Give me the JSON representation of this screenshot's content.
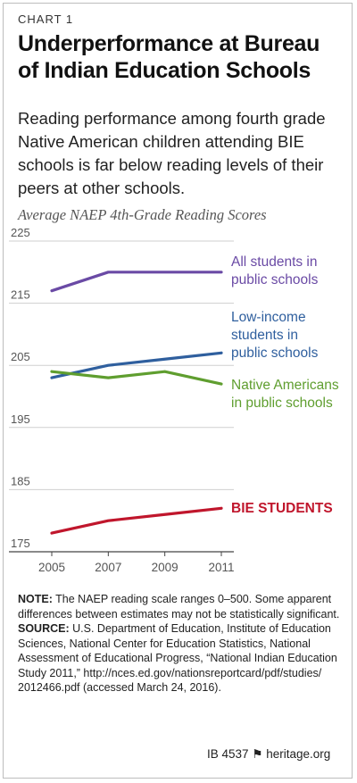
{
  "header": {
    "chart_label": "CHART 1",
    "title_line1": "Underperformance at Bureau",
    "title_line2": "of Indian Education Schools",
    "subtitle_lines": [
      "Reading performance among fourth grade",
      "Native American children attending BIE",
      "schools is far below reading levels of their",
      "peers at other schools."
    ]
  },
  "chart_data": {
    "type": "line",
    "title": "Average NAEP 4th-Grade Reading Scores",
    "x": [
      2005,
      2007,
      2009,
      2011
    ],
    "xlim": [
      2005,
      2011
    ],
    "ylim": [
      175,
      225
    ],
    "yticks": [
      175,
      185,
      195,
      205,
      215,
      225
    ],
    "grid": true,
    "series": [
      {
        "name": "All students in public schools",
        "label_lines": [
          "All students in",
          "public schools"
        ],
        "color": "#6a4aa5",
        "values": [
          217,
          220,
          220,
          220
        ]
      },
      {
        "name": "Low-income students in public schools",
        "label_lines": [
          "Low-income",
          "students in",
          "public schools"
        ],
        "color": "#2f5f9e",
        "values": [
          203,
          205,
          206,
          207
        ]
      },
      {
        "name": "Native Americans in public schools",
        "label_lines": [
          "Native Americans",
          "in public schools"
        ],
        "color": "#5f9e2f",
        "values": [
          204,
          203,
          204,
          202
        ]
      },
      {
        "name": "BIE STUDENTS",
        "label_lines": [
          "BIE STUDENTS"
        ],
        "color": "#c0162c",
        "values": [
          178,
          180,
          181,
          182
        ]
      }
    ]
  },
  "notes": {
    "note_label": "NOTE:",
    "note_text": "The NAEP reading scale ranges 0–500. Some apparent differences between estimates may not be statistically significant.",
    "source_label": "SOURCE:",
    "source_text": "U.S. Department of Education, Institute of Education Sciences, National Center for Education Statistics, National Assessment of Educational Progress, “National Indian Education Study 2011,” http://nces.ed.gov/nationsreportcard/pdf/studies/ 2012466.pdf (accessed March 24, 2016)."
  },
  "footer": {
    "id": "IB 4537",
    "site": "heritage.org"
  }
}
